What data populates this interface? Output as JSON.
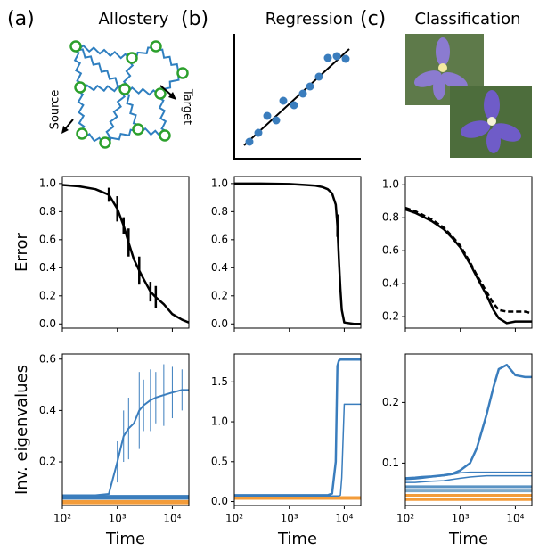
{
  "panels": [
    {
      "letter": "(a)",
      "title": "Allostery"
    },
    {
      "letter": "(b)",
      "title": "Regression"
    },
    {
      "letter": "(c)",
      "title": "Classification"
    }
  ],
  "diagram": {
    "source": "Source",
    "target": "Target"
  },
  "chart_data": [
    {
      "type": "line",
      "xscale": "log",
      "ylabel": "Error",
      "xlim": [
        100,
        20000
      ],
      "xticks": [
        100,
        1000,
        10000
      ],
      "ylim": [
        -0.03,
        1.05
      ],
      "yticks": [
        {
          "value": 0,
          "label": "0.0"
        },
        0.2,
        0.4,
        0.6,
        0.8,
        {
          "value": 1,
          "label": "1.0"
        }
      ],
      "x": [
        100,
        200,
        400,
        700,
        1000,
        1300,
        1600,
        2000,
        2500,
        3000,
        4000,
        5000,
        7000,
        10000,
        15000,
        20000
      ],
      "series": [
        {
          "color": "#000000",
          "width": 2.5,
          "dash": false,
          "values": [
            0.99,
            0.98,
            0.96,
            0.92,
            0.82,
            0.7,
            0.58,
            0.46,
            0.38,
            0.32,
            0.23,
            0.19,
            0.14,
            0.07,
            0.03,
            0.01
          ],
          "errors": [
            null,
            null,
            null,
            0.05,
            0.09,
            0.06,
            0.1,
            null,
            0.1,
            null,
            0.07,
            0.08,
            null,
            null,
            null,
            null
          ]
        }
      ]
    },
    {
      "type": "line",
      "xscale": "log",
      "xlim": [
        100,
        20000
      ],
      "xticks": [
        100,
        1000,
        10000
      ],
      "ylim": [
        -0.03,
        1.05
      ],
      "yticks": [
        {
          "value": 0,
          "label": "0.0"
        },
        0.2,
        0.4,
        0.6,
        0.8,
        {
          "value": 1,
          "label": "1.0"
        }
      ],
      "x": [
        100,
        300,
        1000,
        2000,
        3000,
        4000,
        5000,
        6000,
        7000,
        7500,
        8000,
        8500,
        9000,
        10000,
        15000,
        20000
      ],
      "series": [
        {
          "color": "#000000",
          "width": 2.5,
          "dash": false,
          "values": [
            1.0,
            1.0,
            0.997,
            0.99,
            0.985,
            0.975,
            0.96,
            0.93,
            0.85,
            0.7,
            0.45,
            0.25,
            0.1,
            0.01,
            0.0,
            0.0
          ],
          "errors": [
            null,
            null,
            null,
            null,
            null,
            null,
            null,
            null,
            null,
            0.08,
            null,
            null,
            null,
            null,
            null,
            null
          ]
        }
      ]
    },
    {
      "type": "line",
      "xscale": "log",
      "xlim": [
        100,
        20000
      ],
      "xticks": [
        100,
        1000,
        10000
      ],
      "ylim": [
        0.13,
        1.05
      ],
      "yticks": [
        0.2,
        0.4,
        0.6,
        0.8,
        {
          "value": 1,
          "label": "1.0"
        }
      ],
      "x": [
        100,
        150,
        200,
        300,
        500,
        700,
        1000,
        1500,
        2000,
        3000,
        4000,
        5000,
        7000,
        10000,
        15000,
        20000
      ],
      "series": [
        {
          "color": "#000000",
          "width": 2.5,
          "dash": false,
          "values": [
            0.85,
            0.83,
            0.81,
            0.78,
            0.73,
            0.68,
            0.62,
            0.52,
            0.44,
            0.33,
            0.24,
            0.19,
            0.16,
            0.17,
            0.17,
            0.17
          ]
        },
        {
          "color": "#000000",
          "width": 2.5,
          "dash": true,
          "values": [
            0.86,
            0.84,
            0.82,
            0.79,
            0.74,
            0.69,
            0.63,
            0.53,
            0.45,
            0.35,
            0.28,
            0.24,
            0.23,
            0.23,
            0.23,
            0.22
          ]
        }
      ]
    },
    {
      "type": "line",
      "xscale": "log",
      "ylabel": "Inv. eigenvalues",
      "xlabel": "Time",
      "xlim": [
        100,
        20000
      ],
      "xticks": [
        {
          "value": 100,
          "label": "10²"
        },
        {
          "value": 1000,
          "label": "10³"
        },
        {
          "value": 10000,
          "label": "10⁴"
        }
      ],
      "ylim": [
        0.03,
        0.62
      ],
      "yticks": [
        0.2,
        0.4,
        0.6
      ],
      "x": [
        100,
        200,
        400,
        700,
        1000,
        1300,
        1600,
        2000,
        2500,
        3000,
        4000,
        5000,
        7000,
        10000,
        15000,
        20000
      ],
      "series": [
        {
          "color": "#f39c3a",
          "width": 3,
          "dash": false,
          "values": [
            0.04,
            0.04,
            0.04,
            0.04,
            0.04,
            0.04,
            0.04,
            0.04,
            0.04,
            0.04,
            0.04,
            0.04,
            0.04,
            0.04,
            0.04,
            0.04
          ]
        },
        {
          "color": "#f39c3a",
          "width": 3,
          "dash": false,
          "values": [
            0.046,
            0.046,
            0.046,
            0.046,
            0.046,
            0.046,
            0.046,
            0.046,
            0.046,
            0.046,
            0.046,
            0.046,
            0.046,
            0.046,
            0.046,
            0.046
          ]
        },
        {
          "color": "#3a7dbd",
          "width": 3,
          "dash": false,
          "values": [
            0.058,
            0.058,
            0.058,
            0.058,
            0.058,
            0.058,
            0.058,
            0.058,
            0.058,
            0.058,
            0.058,
            0.058,
            0.058,
            0.058,
            0.058,
            0.058
          ]
        },
        {
          "color": "#3a7dbd",
          "width": 3,
          "dash": false,
          "values": [
            0.066,
            0.066,
            0.066,
            0.066,
            0.066,
            0.066,
            0.066,
            0.066,
            0.066,
            0.066,
            0.066,
            0.066,
            0.066,
            0.066,
            0.066,
            0.066
          ]
        },
        {
          "color": "#3a7dbd",
          "width": 2,
          "dash": false,
          "values": [
            0.07,
            0.07,
            0.07,
            0.075,
            0.2,
            0.3,
            0.33,
            0.35,
            0.4,
            0.42,
            0.44,
            0.45,
            0.46,
            0.47,
            0.48,
            0.48
          ],
          "errors": [
            null,
            null,
            null,
            null,
            0.08,
            0.1,
            0.12,
            null,
            0.15,
            0.1,
            0.12,
            0.1,
            0.12,
            0.1,
            0.08,
            null
          ]
        }
      ]
    },
    {
      "type": "line",
      "xscale": "log",
      "xlabel": "Time",
      "xlim": [
        100,
        20000
      ],
      "xticks": [
        {
          "value": 100,
          "label": "10²"
        },
        {
          "value": 1000,
          "label": "10³"
        },
        {
          "value": 10000,
          "label": "10⁴"
        }
      ],
      "ylim": [
        -0.05,
        1.85
      ],
      "yticks": [
        {
          "value": 0,
          "label": "0.0"
        },
        0.5,
        {
          "value": 1,
          "label": "1.0"
        },
        1.5
      ],
      "x": [
        100,
        300,
        1000,
        2000,
        3000,
        4000,
        5000,
        6000,
        7000,
        7500,
        8000,
        8500,
        9000,
        10000,
        15000,
        20000
      ],
      "series": [
        {
          "color": "#f39c3a",
          "width": 3,
          "dash": false,
          "values": [
            0.04,
            0.04,
            0.04,
            0.04,
            0.04,
            0.04,
            0.04,
            0.04,
            0.04,
            0.04,
            0.04,
            0.04,
            0.04,
            0.04,
            0.04,
            0.04
          ]
        },
        {
          "color": "#f39c3a",
          "width": 3,
          "dash": false,
          "values": [
            0.05,
            0.05,
            0.05,
            0.05,
            0.05,
            0.05,
            0.05,
            0.05,
            0.05,
            0.05,
            0.05,
            0.05,
            0.05,
            0.05,
            0.05,
            0.05
          ]
        },
        {
          "color": "#3a7dbd",
          "width": 1.5,
          "dash": false,
          "values": [
            0.07,
            0.07,
            0.07,
            0.07,
            0.07,
            0.07,
            0.07,
            0.07,
            0.07,
            0.07,
            0.07,
            0.08,
            0.3,
            1.22,
            1.22,
            1.22
          ]
        },
        {
          "color": "#3a7dbd",
          "width": 2.5,
          "dash": false,
          "values": [
            0.08,
            0.08,
            0.08,
            0.08,
            0.08,
            0.08,
            0.08,
            0.1,
            0.5,
            1.7,
            1.77,
            1.78,
            1.78,
            1.78,
            1.78,
            1.78
          ]
        }
      ]
    },
    {
      "type": "line",
      "xscale": "log",
      "xlabel": "Time",
      "xlim": [
        100,
        20000
      ],
      "xticks": [
        {
          "value": 100,
          "label": "10²"
        },
        {
          "value": 1000,
          "label": "10³"
        },
        {
          "value": 10000,
          "label": "10⁴"
        }
      ],
      "ylim": [
        0.03,
        0.28
      ],
      "yticks": [
        0.1,
        0.2
      ],
      "x": [
        100,
        150,
        200,
        300,
        500,
        700,
        1000,
        1500,
        2000,
        3000,
        4000,
        5000,
        7000,
        10000,
        15000,
        20000
      ],
      "series": [
        {
          "color": "#f39c3a",
          "width": 3,
          "dash": false,
          "values": [
            0.04,
            0.04,
            0.04,
            0.04,
            0.04,
            0.04,
            0.04,
            0.04,
            0.04,
            0.04,
            0.04,
            0.04,
            0.04,
            0.04,
            0.04,
            0.04
          ]
        },
        {
          "color": "#f39c3a",
          "width": 3,
          "dash": false,
          "values": [
            0.047,
            0.047,
            0.047,
            0.047,
            0.047,
            0.047,
            0.047,
            0.047,
            0.047,
            0.047,
            0.047,
            0.047,
            0.047,
            0.047,
            0.047,
            0.047
          ]
        },
        {
          "color": "#7fa9c9",
          "width": 3,
          "dash": false,
          "values": [
            0.054,
            0.054,
            0.054,
            0.054,
            0.054,
            0.054,
            0.054,
            0.054,
            0.054,
            0.054,
            0.054,
            0.054,
            0.054,
            0.054,
            0.054,
            0.054
          ]
        },
        {
          "color": "#5a93c4",
          "width": 3,
          "dash": false,
          "values": [
            0.061,
            0.061,
            0.061,
            0.061,
            0.061,
            0.061,
            0.061,
            0.061,
            0.061,
            0.061,
            0.061,
            0.061,
            0.061,
            0.061,
            0.061,
            0.061
          ]
        },
        {
          "color": "#3a7dbd",
          "width": 1.5,
          "dash": false,
          "values": [
            0.068,
            0.068,
            0.069,
            0.07,
            0.071,
            0.073,
            0.075,
            0.077,
            0.078,
            0.079,
            0.079,
            0.079,
            0.079,
            0.079,
            0.079,
            0.079
          ]
        },
        {
          "color": "#3a7dbd",
          "width": 1.5,
          "dash": false,
          "values": [
            0.073,
            0.074,
            0.075,
            0.077,
            0.079,
            0.081,
            0.084,
            0.085,
            0.085,
            0.085,
            0.085,
            0.085,
            0.085,
            0.085,
            0.085,
            0.085
          ]
        },
        {
          "color": "#3a7dbd",
          "width": 2.5,
          "dash": false,
          "values": [
            0.075,
            0.076,
            0.077,
            0.078,
            0.08,
            0.082,
            0.088,
            0.1,
            0.125,
            0.18,
            0.225,
            0.255,
            0.262,
            0.245,
            0.242,
            0.242
          ]
        }
      ]
    }
  ]
}
